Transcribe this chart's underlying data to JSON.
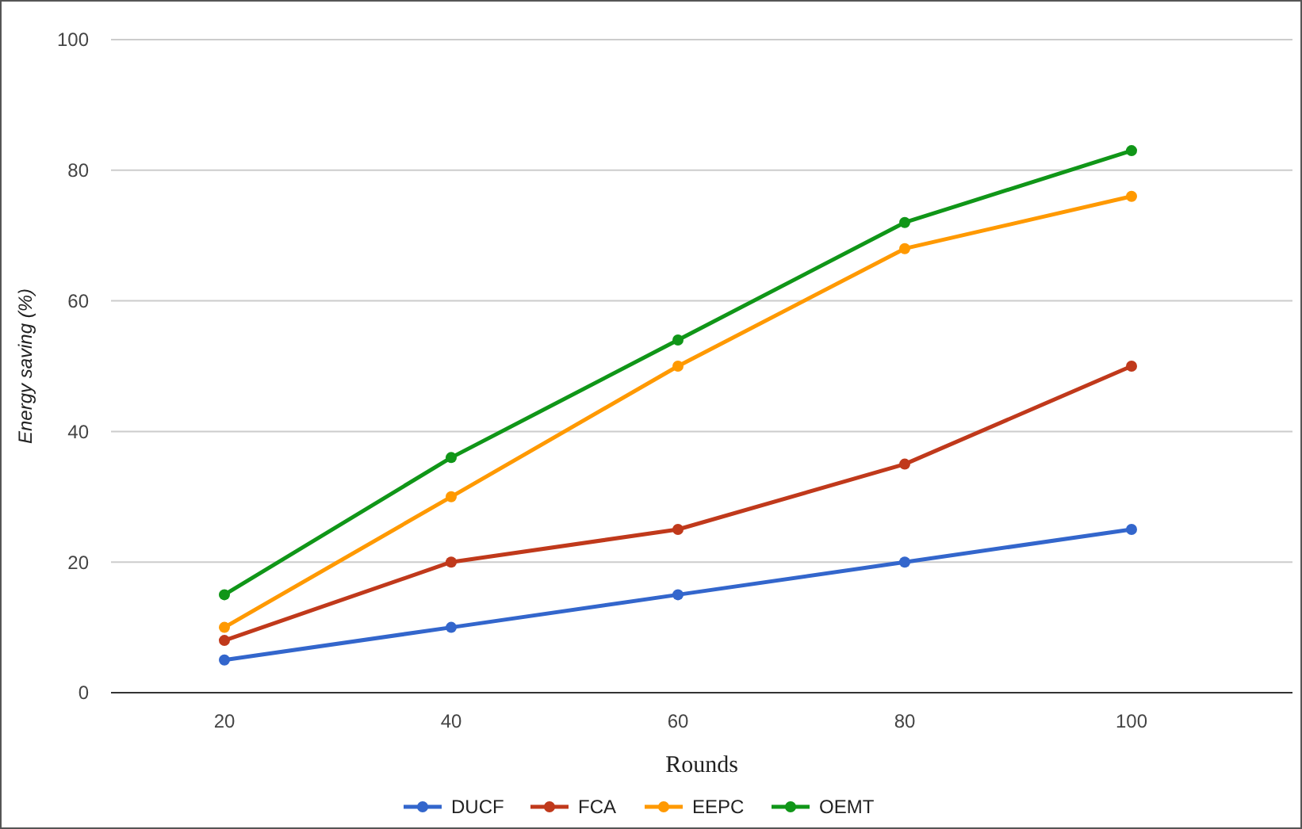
{
  "chart_data": {
    "type": "line",
    "xlabel": "Rounds",
    "ylabel": "Energy saving (%)",
    "categories": [
      "20",
      "40",
      "60",
      "80",
      "100"
    ],
    "series": [
      {
        "name": "DUCF",
        "color": "#3366cc",
        "values": [
          5,
          10,
          15,
          20,
          25
        ]
      },
      {
        "name": "FCA",
        "color": "#c0391b",
        "values": [
          8,
          20,
          25,
          35,
          50
        ]
      },
      {
        "name": "EEPC",
        "color": "#ff9900",
        "values": [
          10,
          30,
          50,
          68,
          76
        ]
      },
      {
        "name": "OEMT",
        "color": "#109618",
        "values": [
          15,
          36,
          54,
          72,
          83
        ]
      }
    ],
    "ylim": [
      0,
      100
    ],
    "yticks": [
      0,
      20,
      40,
      60,
      80,
      100
    ],
    "grid": "y",
    "legend": "bottom",
    "marker": "circle",
    "line_style": "solid"
  }
}
